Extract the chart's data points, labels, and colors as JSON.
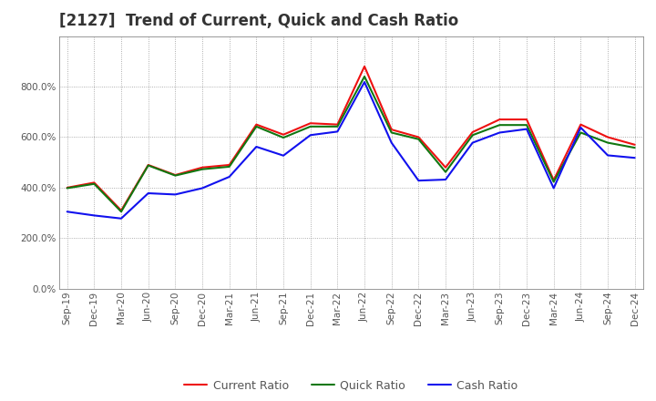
{
  "title": "[2127]  Trend of Current, Quick and Cash Ratio",
  "x_labels": [
    "Sep-19",
    "Dec-19",
    "Mar-20",
    "Jun-20",
    "Sep-20",
    "Dec-20",
    "Mar-21",
    "Jun-21",
    "Sep-21",
    "Dec-21",
    "Mar-22",
    "Jun-22",
    "Sep-22",
    "Dec-22",
    "Mar-23",
    "Jun-23",
    "Sep-23",
    "Dec-23",
    "Mar-24",
    "Jun-24",
    "Sep-24",
    "Dec-24"
  ],
  "current_ratio": [
    400,
    420,
    310,
    490,
    450,
    480,
    490,
    650,
    610,
    655,
    650,
    880,
    630,
    600,
    480,
    620,
    670,
    670,
    430,
    650,
    600,
    570
  ],
  "quick_ratio": [
    398,
    415,
    305,
    488,
    448,
    473,
    483,
    642,
    598,
    642,
    642,
    840,
    618,
    592,
    462,
    608,
    648,
    648,
    423,
    618,
    578,
    558
  ],
  "cash_ratio": [
    305,
    290,
    278,
    378,
    373,
    398,
    443,
    562,
    527,
    608,
    622,
    818,
    578,
    428,
    432,
    578,
    618,
    632,
    398,
    638,
    528,
    518
  ],
  "ylim": [
    0,
    1000
  ],
  "ytick_values": [
    0,
    200,
    400,
    600,
    800
  ],
  "ytick_labels": [
    "0.0%",
    "200.0%",
    "400.0%",
    "600.0%",
    "800.0%"
  ],
  "current_color": "#ee1111",
  "quick_color": "#117711",
  "cash_color": "#1111ee",
  "line_width": 1.5,
  "background_color": "#ffffff",
  "plot_bg_color": "#ffffff",
  "grid_color": "#999999",
  "grid_style": ":",
  "title_fontsize": 12,
  "title_color": "#333333",
  "legend_fontsize": 9,
  "tick_fontsize": 7.5,
  "tick_color": "#555555"
}
